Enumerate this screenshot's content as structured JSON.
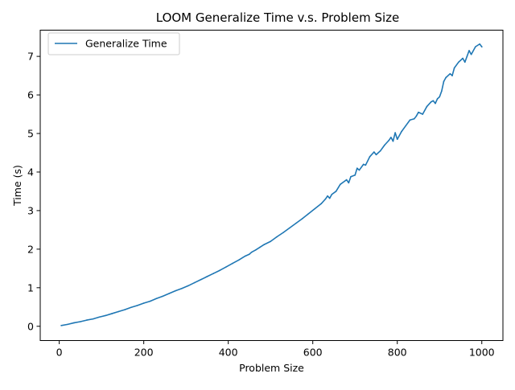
{
  "chart_data": {
    "type": "line",
    "title": "LOOM Generalize Time v.s. Problem Size",
    "xlabel": "Problem Size",
    "ylabel": "Time (s)",
    "xlim": [
      -45,
      1050
    ],
    "ylim": [
      -0.37,
      7.68
    ],
    "x_ticks": [
      0,
      200,
      400,
      600,
      800,
      1000
    ],
    "y_ticks": [
      0,
      1,
      2,
      3,
      4,
      5,
      6,
      7
    ],
    "grid": false,
    "legend": "upper-left",
    "color": "#1f77b4",
    "series": [
      {
        "name": "Generalize Time",
        "x": [
          5,
          20,
          35,
          50,
          65,
          80,
          95,
          110,
          125,
          140,
          155,
          170,
          185,
          200,
          215,
          230,
          245,
          260,
          275,
          290,
          305,
          320,
          335,
          350,
          365,
          380,
          395,
          410,
          425,
          440,
          450,
          455,
          465,
          475,
          485,
          500,
          515,
          530,
          545,
          560,
          575,
          590,
          605,
          620,
          630,
          635,
          640,
          645,
          655,
          665,
          670,
          680,
          685,
          690,
          700,
          705,
          710,
          720,
          725,
          735,
          745,
          750,
          760,
          770,
          780,
          785,
          790,
          795,
          800,
          810,
          820,
          830,
          840,
          845,
          850,
          860,
          870,
          880,
          885,
          890,
          895,
          900,
          905,
          910,
          915,
          925,
          930,
          935,
          945,
          955,
          960,
          965,
          970,
          975,
          985,
          995,
          1000
        ],
        "values": [
          0.02,
          0.05,
          0.09,
          0.12,
          0.16,
          0.19,
          0.24,
          0.28,
          0.33,
          0.38,
          0.43,
          0.49,
          0.54,
          0.6,
          0.65,
          0.72,
          0.78,
          0.85,
          0.92,
          0.98,
          1.05,
          1.13,
          1.21,
          1.29,
          1.37,
          1.45,
          1.54,
          1.63,
          1.72,
          1.82,
          1.87,
          1.92,
          1.98,
          2.05,
          2.12,
          2.2,
          2.32,
          2.43,
          2.55,
          2.67,
          2.79,
          2.92,
          3.05,
          3.18,
          3.3,
          3.38,
          3.32,
          3.42,
          3.5,
          3.68,
          3.72,
          3.8,
          3.72,
          3.88,
          3.92,
          4.1,
          4.05,
          4.2,
          4.18,
          4.4,
          4.52,
          4.45,
          4.55,
          4.7,
          4.82,
          4.9,
          4.8,
          5.02,
          4.85,
          5.05,
          5.2,
          5.35,
          5.38,
          5.45,
          5.55,
          5.5,
          5.7,
          5.82,
          5.85,
          5.78,
          5.9,
          5.95,
          6.1,
          6.35,
          6.45,
          6.55,
          6.5,
          6.7,
          6.85,
          6.95,
          6.85,
          7.0,
          7.15,
          7.05,
          7.25,
          7.32,
          7.25
        ]
      }
    ]
  }
}
